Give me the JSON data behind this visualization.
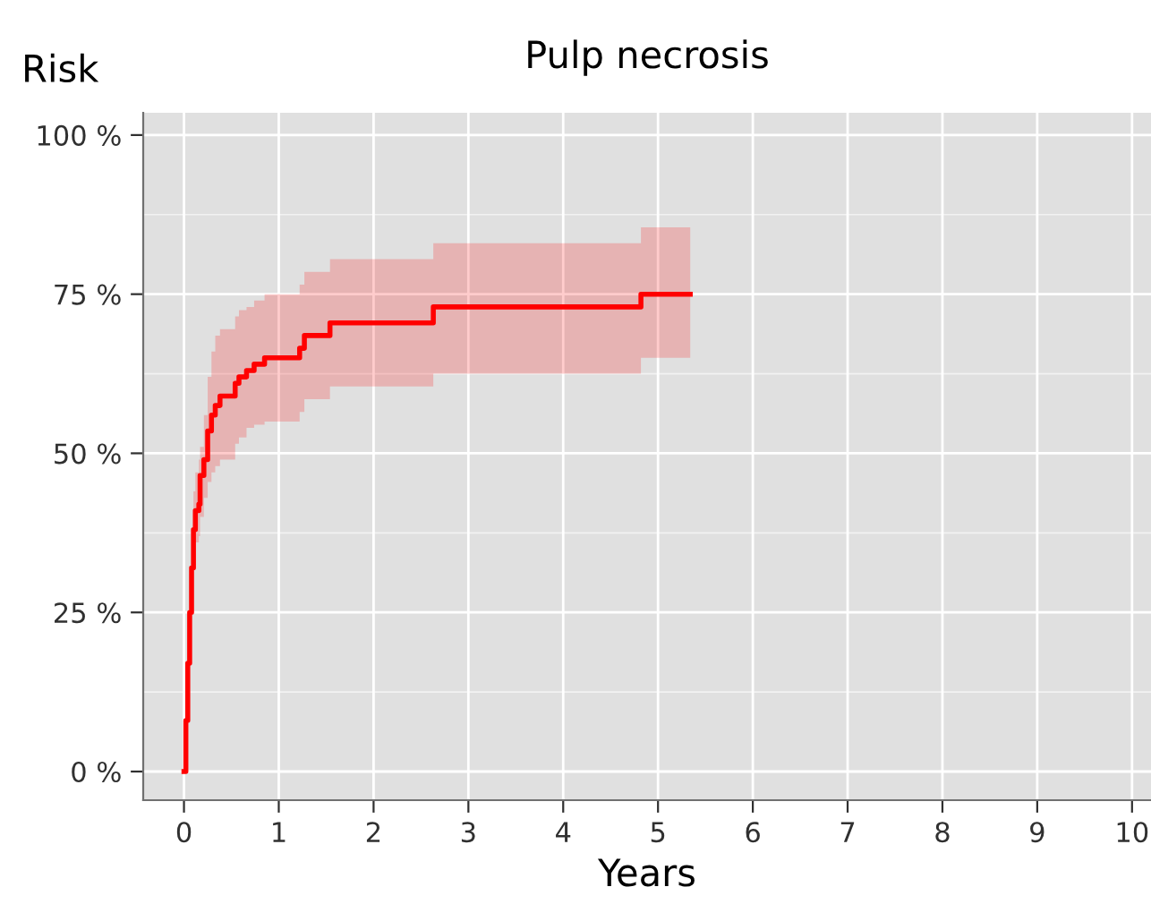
{
  "chart_data": {
    "type": "step",
    "title": "Pulp necrosis",
    "xlabel": "Years",
    "ylabel": "Risk",
    "series": [
      {
        "color": "#ff0000",
        "x": [
          0,
          0.02,
          0.04,
          0.06,
          0.08,
          0.1,
          0.12,
          0.157,
          0.17,
          0.21,
          0.25,
          0.29,
          0.33,
          0.38,
          0.54,
          0.58,
          0.66,
          0.74,
          0.85,
          1.22,
          1.27,
          1.54,
          2.63,
          4.82,
          5.34
        ],
        "values": [
          0,
          8,
          17,
          25,
          32,
          38,
          41,
          42,
          46.5,
          49,
          53.5,
          56,
          57.5,
          59,
          61,
          62,
          63,
          64,
          65,
          66.5,
          68.5,
          70.5,
          73,
          75,
          75
        ],
        "lower": [
          0,
          5,
          12,
          19,
          26,
          32,
          36,
          37,
          40,
          43,
          45.5,
          47,
          48,
          49,
          51.5,
          52.5,
          54,
          54.5,
          55,
          56.5,
          58.5,
          60.5,
          62.5,
          65,
          65
        ],
        "upper": [
          0,
          11,
          22,
          31,
          38,
          44,
          47,
          49,
          51,
          56,
          62,
          66,
          68.5,
          69.5,
          71.5,
          72.5,
          73,
          74,
          75,
          76.5,
          78.5,
          80.5,
          83,
          85.5,
          85.5
        ]
      }
    ],
    "xlim": [
      -0.43,
      10.2
    ],
    "ylim": [
      -4.5,
      103.5
    ],
    "xticks": [
      0,
      1,
      2,
      3,
      4,
      5,
      6,
      7,
      8,
      9,
      10
    ],
    "yticks": [
      {
        "value": 0,
        "label": "0 %"
      },
      {
        "value": 25,
        "label": "25 %"
      },
      {
        "value": 50,
        "label": "50 %"
      },
      {
        "value": 75,
        "label": "75 %"
      },
      {
        "value": 100,
        "label": "100 %"
      }
    ],
    "grid": true,
    "line_style": "solid",
    "marker": "none"
  }
}
